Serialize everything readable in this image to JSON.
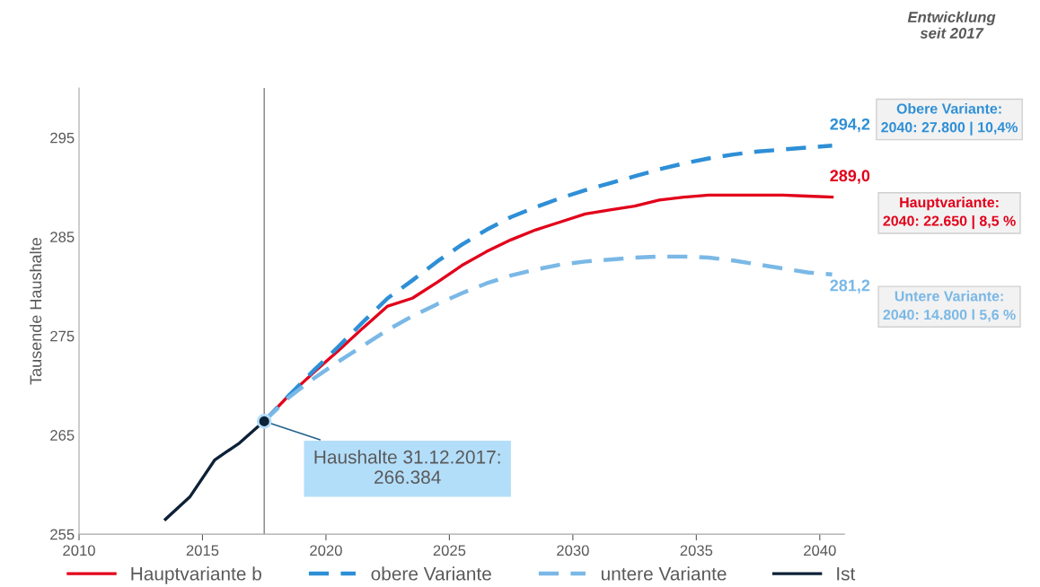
{
  "chart_data": {
    "type": "line",
    "ylabel": "Tausende Haushalte",
    "xlim": [
      2010,
      2041
    ],
    "xticks": [
      2010,
      2015,
      2020,
      2025,
      2030,
      2035,
      2040
    ],
    "ylim": [
      255,
      300
    ],
    "yticks": [
      255,
      265,
      275,
      285,
      295
    ],
    "grid": false,
    "legend": "bottom",
    "marker": "none",
    "ref_lines": [
      {
        "axis": "x",
        "value": 2017.5,
        "color": "#808080"
      }
    ],
    "series": [
      {
        "name": "Hauptvariante b",
        "color": "#e2001a",
        "line_style": "solid",
        "x": [
          2017.5,
          2018.5,
          2019.5,
          2020.5,
          2021.5,
          2022.5,
          2023.5,
          2024.5,
          2025.5,
          2026.5,
          2027.5,
          2028.5,
          2029.5,
          2030.5,
          2031.5,
          2032.5,
          2033.5,
          2034.5,
          2035.5,
          2036.5,
          2037.5,
          2038.5,
          2039.5,
          2040.5
        ],
        "values": [
          266.4,
          269.0,
          271.3,
          273.5,
          275.8,
          278.0,
          278.8,
          280.4,
          282.1,
          283.5,
          284.7,
          285.7,
          286.5,
          287.3,
          287.7,
          288.1,
          288.7,
          289.0,
          289.2,
          289.2,
          289.2,
          289.2,
          289.1,
          289.0
        ],
        "value_labels": [
          null,
          null,
          null,
          null,
          null,
          null,
          null,
          null,
          null,
          null,
          null,
          null,
          null,
          null,
          null,
          null,
          null,
          null,
          null,
          null,
          null,
          null,
          null,
          "289,0"
        ]
      },
      {
        "name": "obere Variante",
        "color": "#2e8fd6",
        "line_style": "dashed",
        "x": [
          2017.5,
          2018.5,
          2019.5,
          2020.5,
          2021.5,
          2022.5,
          2023.5,
          2024.5,
          2025.5,
          2026.5,
          2027.5,
          2028.5,
          2029.5,
          2030.5,
          2031.5,
          2032.5,
          2033.5,
          2034.5,
          2035.5,
          2036.5,
          2037.5,
          2038.5,
          2039.5,
          2040.5
        ],
        "values": [
          266.4,
          269.0,
          271.5,
          273.9,
          276.4,
          278.8,
          280.6,
          282.5,
          284.2,
          285.7,
          287.0,
          288.0,
          288.9,
          289.7,
          290.4,
          291.1,
          291.8,
          292.4,
          292.9,
          293.3,
          293.6,
          293.8,
          294.0,
          294.2
        ],
        "value_labels": [
          null,
          null,
          null,
          null,
          null,
          null,
          null,
          null,
          null,
          null,
          null,
          null,
          null,
          null,
          null,
          null,
          null,
          null,
          null,
          null,
          null,
          null,
          null,
          "294,2"
        ]
      },
      {
        "name": "untere Variante",
        "color": "#7ab8e6",
        "line_style": "dashed",
        "x": [
          2017.5,
          2018.5,
          2019.5,
          2020.5,
          2021.5,
          2022.5,
          2023.5,
          2024.5,
          2025.5,
          2026.5,
          2027.5,
          2028.5,
          2029.5,
          2030.5,
          2031.5,
          2032.5,
          2033.5,
          2034.5,
          2035.5,
          2036.5,
          2037.5,
          2038.5,
          2039.5,
          2040.5
        ],
        "values": [
          266.4,
          268.8,
          270.7,
          272.4,
          274.0,
          275.6,
          277.0,
          278.2,
          279.3,
          280.3,
          281.1,
          281.7,
          282.2,
          282.5,
          282.7,
          282.9,
          283.0,
          283.0,
          282.9,
          282.6,
          282.2,
          281.8,
          281.4,
          281.2
        ],
        "value_labels": [
          null,
          null,
          null,
          null,
          null,
          null,
          null,
          null,
          null,
          null,
          null,
          null,
          null,
          null,
          null,
          null,
          null,
          null,
          null,
          null,
          null,
          null,
          null,
          "281,2"
        ]
      },
      {
        "name": "Ist",
        "color": "#0d2137",
        "line_style": "solid",
        "x": [
          2013.5,
          2014.5,
          2015.5,
          2016.5,
          2017.5
        ],
        "values": [
          256.5,
          258.8,
          262.5,
          264.2,
          266.4
        ]
      }
    ],
    "annotations": [
      "Entwicklung\nseit 2017",
      {
        "text": "Haushalte 31.12.2017:\n266.384",
        "x": 2017.5,
        "y": 266.384
      },
      "Obere Variante:\n2040: 27.800 | 10,4%",
      "Hauptvariante:\n2040: 22.650 | 8,5 %",
      "Untere Variante:\n2040: 14.800 l 5,6 %"
    ]
  }
}
